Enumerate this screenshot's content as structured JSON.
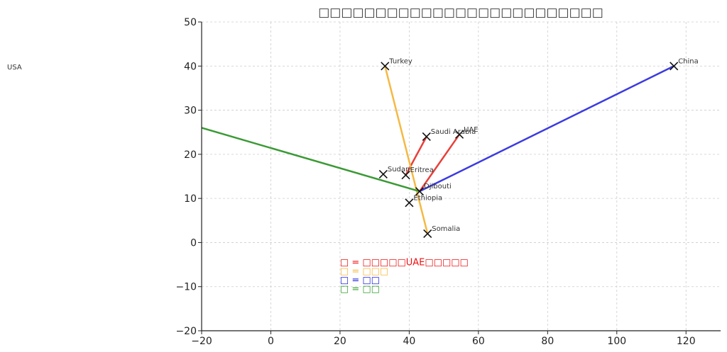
{
  "chart_data": {
    "type": "scatter",
    "title": "□□□□□□□□□□□□□□□□□□□□□□□□□",
    "xlim": [
      -20,
      130
    ],
    "ylim": [
      -20,
      50
    ],
    "x_ticks": [
      -20,
      0,
      20,
      40,
      60,
      80,
      100,
      120
    ],
    "y_ticks": [
      -20,
      -10,
      0,
      10,
      20,
      30,
      40,
      50
    ],
    "x_tick_labels": [
      "−20",
      "0",
      "20",
      "40",
      "60",
      "80",
      "100",
      "120"
    ],
    "y_tick_labels": [
      "−20",
      "−10",
      "0",
      "10",
      "20",
      "30",
      "40",
      "50"
    ],
    "grid": true,
    "points": [
      {
        "label": "Turkey",
        "x": 33,
        "y": 40
      },
      {
        "label": "Saudi Arabia",
        "x": 45,
        "y": 24
      },
      {
        "label": "UAE",
        "x": 54.5,
        "y": 24.5
      },
      {
        "label": "China",
        "x": 116.5,
        "y": 40
      },
      {
        "label": "Sudan",
        "x": 32.5,
        "y": 15.5
      },
      {
        "label": "Eritrea",
        "x": 39,
        "y": 15.3
      },
      {
        "label": "Djibouti",
        "x": 43,
        "y": 11.6
      },
      {
        "label": "Ethiopia",
        "x": 40,
        "y": 9
      },
      {
        "label": "Somalia",
        "x": 45.3,
        "y": 2
      }
    ],
    "lines": [
      {
        "color": "#e8403a",
        "points": [
          [
            45,
            24
          ],
          [
            39,
            15.3
          ]
        ]
      },
      {
        "color": "#e8403a",
        "points": [
          [
            54.5,
            24.5
          ],
          [
            43,
            11.6
          ]
        ]
      },
      {
        "color": "#f5b942",
        "points": [
          [
            33,
            40
          ],
          [
            45.3,
            2
          ]
        ]
      },
      {
        "color": "#3b3be0",
        "points": [
          [
            43,
            11.6
          ],
          [
            116.5,
            40
          ]
        ]
      },
      {
        "color": "#3a9a34",
        "points": [
          [
            -20,
            26
          ],
          [
            43,
            11.6
          ]
        ]
      }
    ],
    "outside_labels": [
      "USA"
    ],
    "annotations": [
      {
        "text": "□ = □□□□□UAE□□□□□",
        "color": "#ee1111"
      },
      {
        "text": "□ = □□□",
        "color": "#f5b942"
      },
      {
        "text": "□ = □□",
        "color": "#2222dd"
      },
      {
        "text": "□ = □□",
        "color": "#33a02c"
      }
    ]
  }
}
